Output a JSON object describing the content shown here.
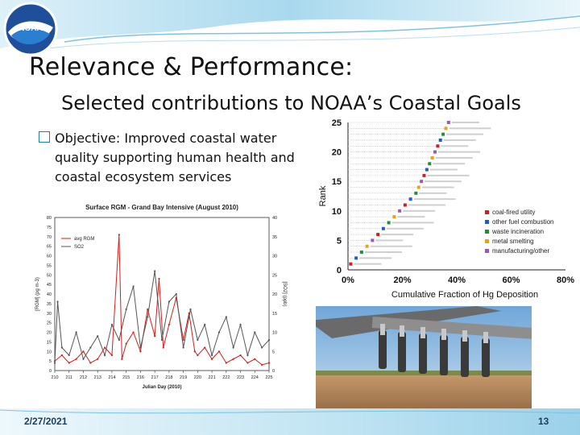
{
  "slide": {
    "title": "Relevance & Performance:",
    "subtitle": "Selected contributions to NOAA’s Coastal Goals",
    "bullet": "Objective: Improved coastal water quality supporting human health and coastal ecosystem services",
    "date": "2/27/2021",
    "slide_number": "13",
    "logo_text": "NOAA",
    "colors": {
      "accent": "#2a8fbf",
      "band": "#bfe3f2",
      "footer_text": "#1a3d5c"
    }
  },
  "chart_data": [
    {
      "type": "scatter",
      "title": "",
      "ylabel": "Rank",
      "xlabel": "Cumulative Fraction of Hg Deposition",
      "xlim": [
        0,
        80
      ],
      "ylim": [
        0,
        25
      ],
      "xticks": [
        "0%",
        "20%",
        "40%",
        "60%",
        "80%"
      ],
      "yticks": [
        "0",
        "5",
        "10",
        "15",
        "20",
        "25"
      ],
      "legend": [
        "coal-fired utility",
        "other fuel combustion",
        "waste incineration",
        "metal smelting",
        "manufacturing/other"
      ],
      "legend_colors": [
        "#d11f1f",
        "#1a5fc7",
        "#1f8f3a",
        "#e8a21a",
        "#9b59b6"
      ],
      "points": [
        {
          "rank": 1,
          "x": 1
        },
        {
          "rank": 2,
          "x": 3
        },
        {
          "rank": 3,
          "x": 5
        },
        {
          "rank": 4,
          "x": 7
        },
        {
          "rank": 5,
          "x": 9
        },
        {
          "rank": 6,
          "x": 11
        },
        {
          "rank": 7,
          "x": 13
        },
        {
          "rank": 8,
          "x": 15
        },
        {
          "rank": 9,
          "x": 17
        },
        {
          "rank": 10,
          "x": 19
        },
        {
          "rank": 11,
          "x": 21
        },
        {
          "rank": 12,
          "x": 23
        },
        {
          "rank": 13,
          "x": 25
        },
        {
          "rank": 14,
          "x": 26
        },
        {
          "rank": 15,
          "x": 27
        },
        {
          "rank": 16,
          "x": 28
        },
        {
          "rank": 17,
          "x": 29
        },
        {
          "rank": 18,
          "x": 30
        },
        {
          "rank": 19,
          "x": 31
        },
        {
          "rank": 20,
          "x": 32
        },
        {
          "rank": 21,
          "x": 33
        },
        {
          "rank": 22,
          "x": 34
        },
        {
          "rank": 23,
          "x": 35
        },
        {
          "rank": 24,
          "x": 36
        },
        {
          "rank": 25,
          "x": 37
        }
      ]
    },
    {
      "type": "line",
      "title": "Surface RGM - Grand Bay Intensive (August 2010)",
      "xlabel": "Julian Day (2010)",
      "ylabel": "[RGM] (pg m-3)",
      "y2label": "[SO2] (ppb)",
      "ylim": [
        0,
        80
      ],
      "y2lim": [
        0,
        40
      ],
      "yticks": [
        "0",
        "5",
        "10",
        "15",
        "20",
        "25",
        "30",
        "35",
        "40",
        "45",
        "50",
        "55",
        "60",
        "65",
        "70",
        "75",
        "80"
      ],
      "y2ticks": [
        "0",
        "5",
        "10",
        "15",
        "20",
        "25",
        "30",
        "35",
        "40"
      ],
      "xticks": [
        "210",
        "211",
        "212",
        "213",
        "214",
        "215",
        "216",
        "217",
        "218",
        "219",
        "220",
        "221",
        "222",
        "223",
        "224",
        "225"
      ],
      "legend": [
        "avg RGM",
        "SO2"
      ],
      "series": [
        {
          "name": "avg RGM",
          "color": "#d11f1f",
          "x": [
            210,
            210.5,
            211,
            211.5,
            212,
            212.5,
            213,
            213.5,
            214,
            214.5,
            214.7,
            215,
            215.5,
            216,
            216.5,
            217,
            217.3,
            217.6,
            218,
            218.5,
            219,
            219.4,
            219.8,
            220,
            220.5,
            221,
            221.5,
            222,
            222.5,
            223,
            223.5,
            224,
            224.5,
            225
          ],
          "values": [
            5,
            8,
            4,
            6,
            10,
            4,
            6,
            12,
            8,
            71,
            6,
            14,
            20,
            10,
            32,
            18,
            48,
            12,
            24,
            38,
            16,
            30,
            10,
            8,
            12,
            6,
            10,
            4,
            6,
            8,
            4,
            6,
            3,
            4
          ]
        },
        {
          "name": "SO2",
          "color": "#555555",
          "x": [
            210,
            210.2,
            210.5,
            211,
            211.5,
            212,
            212.5,
            213,
            213.5,
            214,
            214.5,
            215,
            215.5,
            216,
            216.5,
            217,
            217.5,
            218,
            218.5,
            219,
            219.5,
            220,
            220.5,
            221,
            221.5,
            222,
            222.5,
            223,
            223.5,
            224,
            224.5,
            225
          ],
          "values": [
            2,
            18,
            6,
            4,
            10,
            3,
            6,
            9,
            4,
            12,
            8,
            16,
            22,
            6,
            14,
            26,
            8,
            18,
            20,
            6,
            16,
            8,
            12,
            4,
            10,
            14,
            6,
            12,
            4,
            10,
            6,
            8
          ]
        }
      ]
    }
  ]
}
